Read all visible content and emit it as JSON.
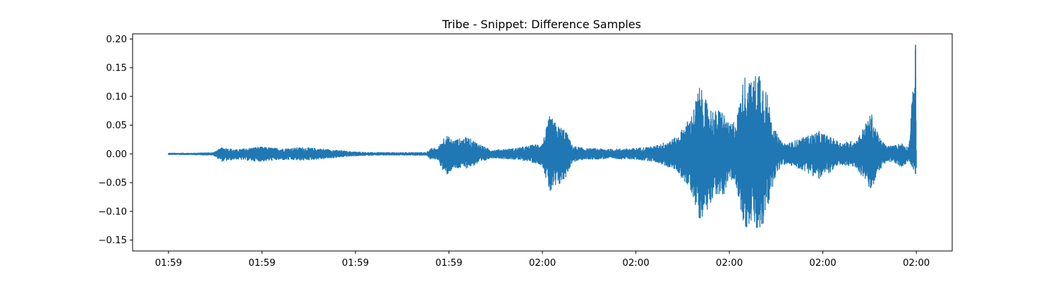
{
  "chart_data": {
    "type": "line",
    "title": "Tribe - Snippet: Difference Samples",
    "xlabel": "",
    "ylabel": "",
    "grid": false,
    "legend": "none",
    "series_color": "#1f77b4",
    "x_tick_labels": [
      "01:59",
      "01:59",
      "01:59",
      "01:59",
      "02:00",
      "02:00",
      "02:00",
      "02:00",
      "02:00"
    ],
    "y_ticks": [
      -0.15,
      -0.1,
      -0.05,
      0.0,
      0.05,
      0.1,
      0.15,
      0.2
    ],
    "y_tick_labels": [
      "−0.15",
      "−0.10",
      "−0.05",
      "0.00",
      "0.05",
      "0.10",
      "0.15",
      "0.20"
    ],
    "xlim": [
      -0.048,
      1.048
    ],
    "ylim": [
      -0.169,
      0.209
    ],
    "series": [
      {
        "envelope_x": [
          0.0,
          0.03,
          0.06,
          0.072,
          0.09,
          0.12,
          0.15,
          0.18,
          0.21,
          0.24,
          0.27,
          0.3,
          0.33,
          0.345,
          0.35,
          0.36,
          0.37,
          0.38,
          0.4,
          0.42,
          0.43,
          0.44,
          0.46,
          0.48,
          0.5,
          0.51,
          0.52,
          0.53,
          0.54,
          0.55,
          0.56,
          0.57,
          0.59,
          0.62,
          0.65,
          0.68,
          0.7,
          0.71,
          0.72,
          0.73,
          0.74,
          0.75,
          0.76,
          0.77,
          0.78,
          0.79,
          0.8,
          0.81,
          0.82,
          0.83,
          0.84,
          0.85,
          0.87,
          0.9,
          0.92,
          0.94,
          0.95,
          0.96,
          0.97,
          0.98,
          0.99,
          0.999,
          1.0
        ],
        "envelope_upper": [
          0.002,
          0.002,
          0.003,
          0.012,
          0.008,
          0.013,
          0.01,
          0.012,
          0.009,
          0.005,
          0.003,
          0.003,
          0.003,
          0.003,
          0.01,
          0.01,
          0.035,
          0.025,
          0.03,
          0.015,
          0.008,
          0.008,
          0.01,
          0.014,
          0.02,
          0.068,
          0.05,
          0.045,
          0.015,
          0.012,
          0.01,
          0.01,
          0.009,
          0.01,
          0.014,
          0.03,
          0.07,
          0.12,
          0.09,
          0.075,
          0.08,
          0.05,
          0.065,
          0.14,
          0.125,
          0.155,
          0.11,
          0.045,
          0.02,
          0.02,
          0.025,
          0.03,
          0.04,
          0.02,
          0.025,
          0.072,
          0.03,
          0.015,
          0.015,
          0.02,
          0.012,
          0.19,
          0.01
        ],
        "envelope_lower": [
          -0.002,
          -0.002,
          -0.003,
          -0.014,
          -0.01,
          -0.014,
          -0.011,
          -0.012,
          -0.009,
          -0.005,
          -0.003,
          -0.003,
          -0.003,
          -0.003,
          -0.01,
          -0.01,
          -0.04,
          -0.028,
          -0.025,
          -0.015,
          -0.008,
          -0.008,
          -0.01,
          -0.013,
          -0.02,
          -0.07,
          -0.06,
          -0.045,
          -0.015,
          -0.012,
          -0.01,
          -0.01,
          -0.009,
          -0.01,
          -0.014,
          -0.03,
          -0.07,
          -0.115,
          -0.1,
          -0.07,
          -0.08,
          -0.045,
          -0.06,
          -0.135,
          -0.12,
          -0.15,
          -0.105,
          -0.045,
          -0.02,
          -0.02,
          -0.025,
          -0.03,
          -0.045,
          -0.02,
          -0.025,
          -0.066,
          -0.03,
          -0.015,
          -0.015,
          -0.025,
          -0.012,
          -0.035,
          -0.035
        ]
      }
    ]
  }
}
